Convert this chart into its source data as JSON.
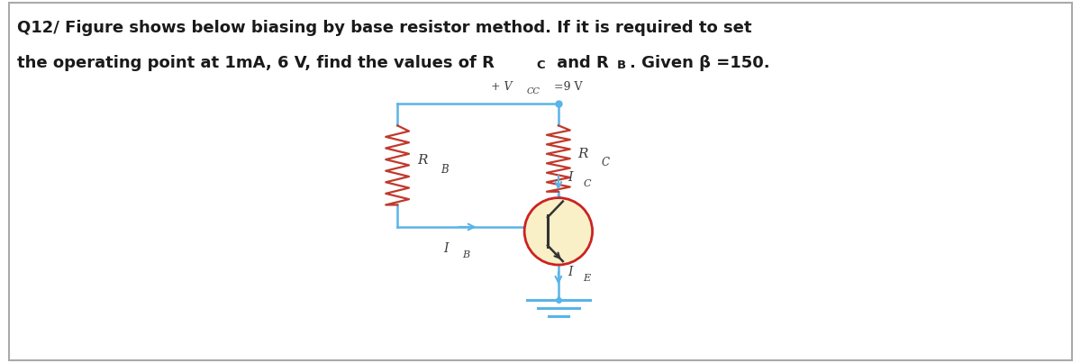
{
  "title_line1": "Q12/ Figure shows below biasing by base resistor method. If it is required to set",
  "title_line2": "the operating point at 1mA, 6 V, find the values of R",
  "title_line2_rc": "C",
  "title_line2_mid": " and R",
  "title_line2_rb": "B",
  "title_line2_end": ". Given β =150.",
  "vcc_text": "+ V",
  "vcc_sub": "CC",
  "vcc_val": "=9 V",
  "wire_color": "#5ab4e8",
  "resistor_color": "#c0392b",
  "transistor_circle_color": "#cc2222",
  "transistor_fill": "#f9f0c8",
  "text_color": "#1a1a1a",
  "label_color": "#3a3a3a",
  "background_color": "#ffffff",
  "fig_width": 12.0,
  "fig_height": 4.03
}
